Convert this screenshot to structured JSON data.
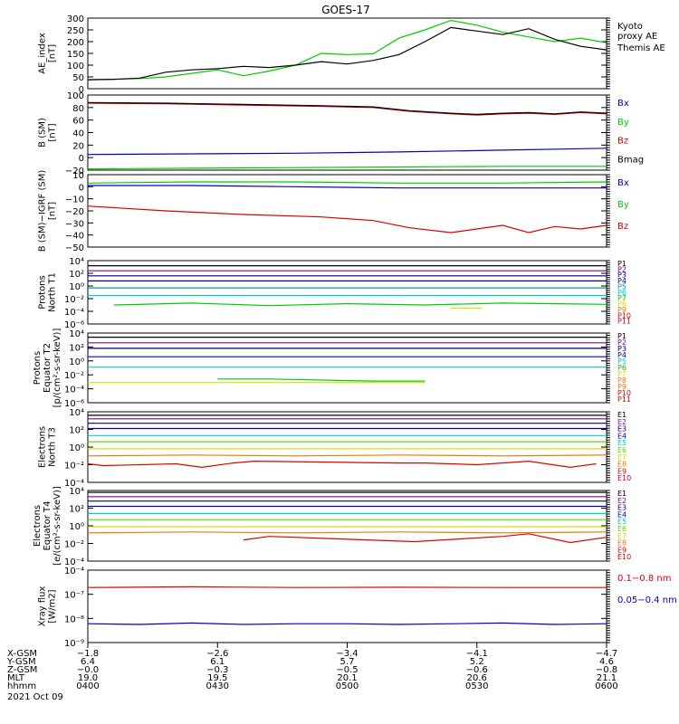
{
  "title": "GOES-17",
  "colors": {
    "black": "#000000",
    "red": "#dd0000",
    "green": "#00cc00",
    "blue": "#0000cc",
    "cyan": "#00cccc",
    "orange": "#ee7700",
    "yellow": "#dddd00",
    "purple": "#880088",
    "navy": "#000077",
    "teal": "#009999",
    "lime": "#55dd00"
  },
  "chart_data": [
    {
      "type": "line",
      "ylabel": "AE_index\n[nT]",
      "ylim": [
        0,
        300
      ],
      "yticks": [
        "300",
        "250",
        "200",
        "150",
        "100",
        "50",
        "0"
      ],
      "legend": [
        "Kyoto\nproxy AE",
        "Themis AE"
      ],
      "series": [
        {
          "name": "Kyoto proxy AE",
          "color": "green",
          "x": [
            0,
            0.05,
            0.1,
            0.15,
            0.2,
            0.25,
            0.3,
            0.35,
            0.4,
            0.45,
            0.5,
            0.55,
            0.6,
            0.65,
            0.7,
            0.75,
            0.8,
            0.85,
            0.9,
            0.95,
            1.0
          ],
          "values": [
            38,
            40,
            43,
            50,
            65,
            80,
            55,
            75,
            100,
            150,
            145,
            148,
            215,
            250,
            290,
            270,
            240,
            220,
            200,
            215,
            195
          ]
        },
        {
          "name": "Themis AE",
          "color": "black",
          "x": [
            0,
            0.05,
            0.1,
            0.15,
            0.2,
            0.25,
            0.3,
            0.35,
            0.4,
            0.45,
            0.5,
            0.55,
            0.6,
            0.65,
            0.7,
            0.75,
            0.8,
            0.85,
            0.9,
            0.95,
            1.0
          ],
          "values": [
            38,
            40,
            45,
            70,
            80,
            85,
            95,
            90,
            100,
            115,
            105,
            120,
            145,
            200,
            260,
            245,
            230,
            255,
            210,
            180,
            165
          ]
        }
      ]
    },
    {
      "type": "line",
      "ylabel": "B (SM)\n[nT]",
      "ylim": [
        -20,
        100
      ],
      "yticks": [
        "100",
        "80",
        "60",
        "40",
        "20",
        "0",
        "−20"
      ],
      "legend": [
        "Bx",
        "By",
        "Bz",
        "Bmag"
      ],
      "series": [
        {
          "name": "Bz",
          "color": "red",
          "x": [
            0,
            0.15,
            0.3,
            0.45,
            0.55,
            0.62,
            0.7,
            0.75,
            0.8,
            0.85,
            0.9,
            0.95,
            1.0
          ],
          "values": [
            87,
            86,
            84,
            82,
            80,
            74,
            70,
            68,
            70,
            71,
            69,
            72,
            70
          ]
        },
        {
          "name": "Bmag",
          "color": "black",
          "x": [
            0,
            0.15,
            0.3,
            0.45,
            0.55,
            0.62,
            0.7,
            0.75,
            0.8,
            0.85,
            0.9,
            0.95,
            1.0
          ],
          "values": [
            88,
            87,
            85,
            83,
            81,
            75,
            71,
            69,
            71,
            72,
            70,
            73,
            71
          ]
        },
        {
          "name": "Bx",
          "color": "blue",
          "x": [
            0,
            0.2,
            0.4,
            0.6,
            0.8,
            1.0
          ],
          "values": [
            5,
            6,
            7,
            9,
            12,
            15
          ]
        },
        {
          "name": "By",
          "color": "green",
          "x": [
            0,
            0.2,
            0.4,
            0.6,
            0.8,
            1.0
          ],
          "values": [
            -18,
            -17,
            -16,
            -15,
            -14,
            -14
          ]
        }
      ]
    },
    {
      "type": "line",
      "ylabel": "B (SM)−IGRF (SM)\n[nT]",
      "ylim": [
        -50,
        10
      ],
      "yticks": [
        "10",
        "0",
        "−10",
        "−20",
        "−30",
        "−40",
        "−50"
      ],
      "legend": [
        "Bx",
        "By",
        "Bz"
      ],
      "series": [
        {
          "name": "By",
          "color": "green",
          "x": [
            0,
            0.2,
            0.4,
            0.6,
            0.8,
            1.0
          ],
          "values": [
            3,
            4,
            4,
            3,
            3,
            4
          ]
        },
        {
          "name": "Bx",
          "color": "blue",
          "x": [
            0,
            0.2,
            0.4,
            0.6,
            0.8,
            1.0
          ],
          "values": [
            1,
            1,
            0,
            -1,
            -1,
            -1
          ]
        },
        {
          "name": "Bz",
          "color": "red",
          "x": [
            0,
            0.15,
            0.3,
            0.45,
            0.55,
            0.62,
            0.7,
            0.75,
            0.8,
            0.85,
            0.9,
            0.95,
            1.0
          ],
          "values": [
            -16,
            -20,
            -23,
            -25,
            -28,
            -34,
            -38,
            -35,
            -32,
            -38,
            -33,
            -35,
            -32
          ]
        }
      ]
    },
    {
      "type": "line",
      "ylabel": "Protons\nNorth T1",
      "yscale": "log",
      "ylim": [
        -6,
        4
      ],
      "yticks": [
        "10⁴",
        "10²",
        "10⁰",
        "10⁻²",
        "10⁻⁴",
        "10⁻⁶"
      ],
      "legend": [
        "P1",
        "P2",
        "P3",
        "P4",
        "P5",
        "P6",
        "P7",
        "P8",
        "P9",
        "P10",
        "P11"
      ],
      "series": [
        {
          "name": "P1",
          "color": "black",
          "x": [
            0,
            1
          ],
          "values": [
            3.2,
            3.2
          ]
        },
        {
          "name": "P2",
          "color": "purple",
          "x": [
            0,
            1
          ],
          "values": [
            2.4,
            2.4
          ]
        },
        {
          "name": "P3",
          "color": "navy",
          "x": [
            0,
            1
          ],
          "values": [
            1.6,
            1.6
          ]
        },
        {
          "name": "P4",
          "color": "blue",
          "x": [
            0,
            1
          ],
          "values": [
            0.8,
            0.8
          ]
        },
        {
          "name": "P5",
          "color": "teal",
          "x": [
            0,
            1
          ],
          "values": [
            -0.3,
            -0.3
          ]
        },
        {
          "name": "P6",
          "color": "cyan",
          "x": [
            0,
            1
          ],
          "values": [
            -1.5,
            -1.5
          ]
        },
        {
          "name": "P7",
          "color": "green",
          "x": [
            0.05,
            0.2,
            0.35,
            0.5,
            0.65,
            0.8,
            1.0
          ],
          "values": [
            -3.0,
            -2.7,
            -3.1,
            -2.8,
            -3.0,
            -2.7,
            -2.9
          ]
        },
        {
          "name": "P8",
          "color": "yellow",
          "x": [
            0.7,
            0.76
          ],
          "values": [
            -3.5,
            -3.5
          ]
        }
      ]
    },
    {
      "type": "line",
      "ylabel": "Protons\nEquator T2\n[p/(cm²-s-sr-keV)]",
      "yscale": "log",
      "ylim": [
        -6,
        4
      ],
      "yticks": [
        "10⁴",
        "10²",
        "10⁰",
        "10⁻²",
        "10⁻⁴",
        "10⁻⁶"
      ],
      "legend": [
        "P1",
        "P2",
        "P3",
        "P4",
        "P5",
        "P6",
        "P7",
        "P8",
        "P9",
        "P10",
        "P11"
      ],
      "series": [
        {
          "name": "P1",
          "color": "black",
          "x": [
            0,
            1
          ],
          "values": [
            3.4,
            3.4
          ]
        },
        {
          "name": "P2",
          "color": "purple",
          "x": [
            0,
            1
          ],
          "values": [
            2.6,
            2.6
          ]
        },
        {
          "name": "P3",
          "color": "navy",
          "x": [
            0,
            1
          ],
          "values": [
            1.8,
            1.8
          ]
        },
        {
          "name": "P4",
          "color": "blue",
          "x": [
            0,
            1
          ],
          "values": [
            0.6,
            0.6
          ]
        },
        {
          "name": "P5",
          "color": "cyan",
          "x": [
            0,
            1
          ],
          "values": [
            -0.9,
            -0.9
          ]
        },
        {
          "name": "P6",
          "color": "green",
          "x": [
            0.25,
            0.35,
            0.55,
            0.65
          ],
          "values": [
            -2.6,
            -2.6,
            -2.9,
            -2.9
          ]
        },
        {
          "name": "P7",
          "color": "yellow",
          "x": [
            0.0,
            0.05,
            0.4,
            0.48,
            0.55,
            0.65
          ],
          "values": [
            -3.1,
            -3.1,
            -3.1,
            -3.1,
            -3.1,
            -3.1
          ]
        }
      ]
    },
    {
      "type": "line",
      "ylabel": "Electrons\nNorth T3",
      "yscale": "log",
      "ylim": [
        -4,
        4
      ],
      "yticks": [
        "10⁴",
        "10²",
        "10⁰",
        "10⁻²",
        "10⁻⁴"
      ],
      "legend": [
        "E1",
        "E2",
        "E3",
        "E4",
        "E5",
        "E6",
        "E7",
        "E8",
        "E9",
        "E10"
      ],
      "series": [
        {
          "name": "E1",
          "color": "black",
          "x": [
            0,
            1
          ],
          "values": [
            3.6,
            3.6
          ]
        },
        {
          "name": "E2",
          "color": "purple",
          "x": [
            0,
            1
          ],
          "values": [
            3.2,
            3.2
          ]
        },
        {
          "name": "E3",
          "color": "navy",
          "x": [
            0,
            1
          ],
          "values": [
            2.7,
            2.7
          ]
        },
        {
          "name": "E4",
          "color": "blue",
          "x": [
            0,
            1
          ],
          "values": [
            2.1,
            2.1
          ]
        },
        {
          "name": "E5",
          "color": "cyan",
          "x": [
            0,
            1
          ],
          "values": [
            1.3,
            1.3
          ]
        },
        {
          "name": "E6",
          "color": "lime",
          "x": [
            0,
            1
          ],
          "values": [
            0.6,
            0.6
          ]
        },
        {
          "name": "E7",
          "color": "yellow",
          "x": [
            0,
            1
          ],
          "values": [
            -0.2,
            -0.2
          ]
        },
        {
          "name": "E8",
          "color": "orange",
          "x": [
            0,
            0.2,
            0.4,
            0.6,
            0.8,
            1.0
          ],
          "values": [
            -1.0,
            -0.9,
            -1.0,
            -0.9,
            -1.0,
            -0.9
          ]
        },
        {
          "name": "E9",
          "color": "red",
          "x": [
            0.0,
            0.03,
            0.17,
            0.22,
            0.28,
            0.32,
            0.6,
            0.65,
            0.75,
            0.85,
            0.93,
            0.98
          ],
          "values": [
            -1.9,
            -2.1,
            -1.9,
            -2.3,
            -1.8,
            -1.6,
            -1.8,
            -1.8,
            -2.0,
            -1.6,
            -2.3,
            -1.9
          ]
        }
      ]
    },
    {
      "type": "line",
      "ylabel": "Electrons\nEquator T4\n[e/(cm²-s-sr-keV)]",
      "yscale": "log",
      "ylim": [
        -4,
        4
      ],
      "yticks": [
        "10⁴",
        "10²",
        "10⁰",
        "10⁻²",
        "10⁻⁴"
      ],
      "legend": [
        "E1",
        "E2",
        "E3",
        "E4",
        "E5",
        "E6",
        "E7",
        "E8",
        "E9",
        "E10"
      ],
      "series": [
        {
          "name": "E1",
          "color": "black",
          "x": [
            0,
            1
          ],
          "values": [
            3.8,
            3.8
          ]
        },
        {
          "name": "E2",
          "color": "purple",
          "x": [
            0,
            1
          ],
          "values": [
            3.3,
            3.3
          ]
        },
        {
          "name": "E3",
          "color": "navy",
          "x": [
            0,
            1
          ],
          "values": [
            2.8,
            2.8
          ]
        },
        {
          "name": "E4",
          "color": "blue",
          "x": [
            0,
            1
          ],
          "values": [
            2.2,
            2.2
          ]
        },
        {
          "name": "E5",
          "color": "cyan",
          "x": [
            0,
            1
          ],
          "values": [
            1.4,
            1.4
          ]
        },
        {
          "name": "E6",
          "color": "lime",
          "x": [
            0,
            1
          ],
          "values": [
            0.7,
            0.7
          ]
        },
        {
          "name": "E7",
          "color": "yellow",
          "x": [
            0,
            1
          ],
          "values": [
            -0.1,
            -0.1
          ]
        },
        {
          "name": "E8",
          "color": "orange",
          "x": [
            0,
            0.2,
            0.4,
            0.6,
            0.8,
            1.0
          ],
          "values": [
            -0.8,
            -0.7,
            -0.8,
            -0.7,
            -0.8,
            -0.7
          ]
        },
        {
          "name": "E9",
          "color": "red",
          "x": [
            0.3,
            0.35,
            0.63,
            0.8,
            0.85,
            0.93,
            1.0
          ],
          "values": [
            -1.6,
            -1.2,
            -1.8,
            -1.2,
            -0.9,
            -1.9,
            -1.3
          ]
        }
      ]
    },
    {
      "type": "line",
      "ylabel": "Xray flux\n[W/m2]",
      "yscale": "log",
      "ylim": [
        -9,
        -4
      ],
      "yticks": [
        "10⁻⁴",
        "10⁻⁷",
        "10⁻⁸",
        "10⁻⁹"
      ],
      "legend": [
        "0.1−0.8 nm",
        "0.05−0.4 nm"
      ],
      "series": [
        {
          "name": "0.1−0.8 nm",
          "color": "red",
          "x": [
            0,
            0.2,
            0.4,
            0.6,
            0.8,
            1.0
          ],
          "values": [
            -5.2,
            -5.15,
            -5.2,
            -5.18,
            -5.2,
            -5.2
          ]
        },
        {
          "name": "0.05−0.4 nm",
          "color": "blue",
          "x": [
            0,
            0.1,
            0.2,
            0.3,
            0.4,
            0.5,
            0.6,
            0.7,
            0.8,
            0.9,
            1.0
          ],
          "values": [
            -7.7,
            -7.75,
            -7.65,
            -7.75,
            -7.7,
            -7.7,
            -7.75,
            -7.7,
            -7.65,
            -7.75,
            -7.7
          ]
        }
      ]
    }
  ],
  "x_axis_table": {
    "row_labels": [
      "X-GSM",
      "Y-GSM",
      "Z-GSM",
      "MLT",
      "hhmm",
      "2021 Oct 09"
    ],
    "columns": [
      [
        "−1.8",
        "6.4",
        "−0.0",
        "19.0",
        "0400"
      ],
      [
        "−2.6",
        "6.1",
        "−0.3",
        "19.5",
        "0430"
      ],
      [
        "−3.4",
        "5.7",
        "−0.5",
        "20.1",
        "0500"
      ],
      [
        "−4.1",
        "5.2",
        "−0.6",
        "20.6",
        "0530"
      ],
      [
        "−4.7",
        "4.6",
        "−0.8",
        "21.1",
        "0600"
      ]
    ]
  }
}
